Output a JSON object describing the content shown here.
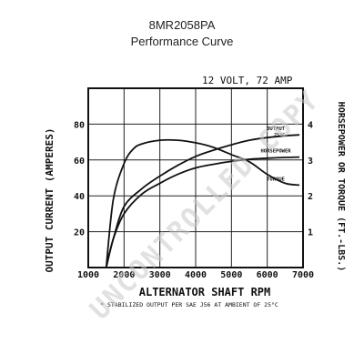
{
  "chart_data": {
    "type": "line",
    "title": "8MR2058PA",
    "subtitle": "Performance Curve",
    "annotation": "12 VOLT, 72 AMP",
    "xlabel": "ALTERNATOR SHAFT RPM",
    "ylabel_left": "OUTPUT CURRENT (AMPERES)",
    "ylabel_right": "HORSEPOWER OR TORQUE (FT.-LBS.)",
    "footnote": "* STABILIZED OUTPUT PER SAE J56 AT AMBIENT OF 25°C",
    "watermark": "UNCONTROLLED COPY",
    "xlim": [
      1000,
      7000
    ],
    "ylim_left": [
      0,
      100
    ],
    "ylim_right": [
      0,
      5
    ],
    "x_ticks": [
      {
        "value": 1000,
        "label": "1000"
      },
      {
        "value": 2000,
        "label": "2000"
      },
      {
        "value": 3000,
        "label": "3000"
      },
      {
        "value": 4000,
        "label": "4000"
      },
      {
        "value": 5000,
        "label": "5000"
      },
      {
        "value": 6000,
        "label": "6000"
      },
      {
        "value": 7000,
        "label": "7000"
      }
    ],
    "y_ticks_left": [
      {
        "value": 20,
        "label": "20"
      },
      {
        "value": 40,
        "label": "40"
      },
      {
        "value": 60,
        "label": "60"
      },
      {
        "value": 80,
        "label": "80"
      }
    ],
    "y_ticks_right": [
      {
        "value": 1,
        "label": "1"
      },
      {
        "value": 2,
        "label": "2"
      },
      {
        "value": 3,
        "label": "3"
      },
      {
        "value": 4,
        "label": "4"
      }
    ],
    "grid": true,
    "series": [
      {
        "name": "OUTPUT",
        "sublabel": "25°C",
        "axis": "left",
        "color": "#111111",
        "x": [
          1500,
          1700,
          2000,
          2500,
          3000,
          3500,
          4000,
          4500,
          5000,
          5500,
          6000,
          6500,
          6900
        ],
        "y": [
          0,
          16,
          34,
          44,
          51,
          57,
          62,
          65.5,
          68.5,
          71,
          72.5,
          73.5,
          74
        ]
      },
      {
        "name": "HORSEPOWER",
        "axis": "right",
        "color": "#111111",
        "x": [
          1500,
          1700,
          2000,
          2500,
          3000,
          3500,
          4000,
          4500,
          5000,
          5500,
          6000,
          6500,
          6900
        ],
        "y": [
          0,
          0.8,
          1.5,
          2.05,
          2.35,
          2.6,
          2.78,
          2.88,
          2.96,
          3.02,
          3.05,
          3.07,
          3.08
        ]
      },
      {
        "name": "TORQUE",
        "axis": "right",
        "color": "#111111",
        "x": [
          1500,
          1700,
          2000,
          2250,
          2500,
          3000,
          3500,
          4000,
          4500,
          5000,
          5500,
          6000,
          6500,
          6900
        ],
        "y": [
          0,
          1.9,
          2.9,
          3.3,
          3.45,
          3.55,
          3.55,
          3.48,
          3.35,
          3.15,
          2.95,
          2.6,
          2.35,
          2.3
        ]
      }
    ]
  }
}
